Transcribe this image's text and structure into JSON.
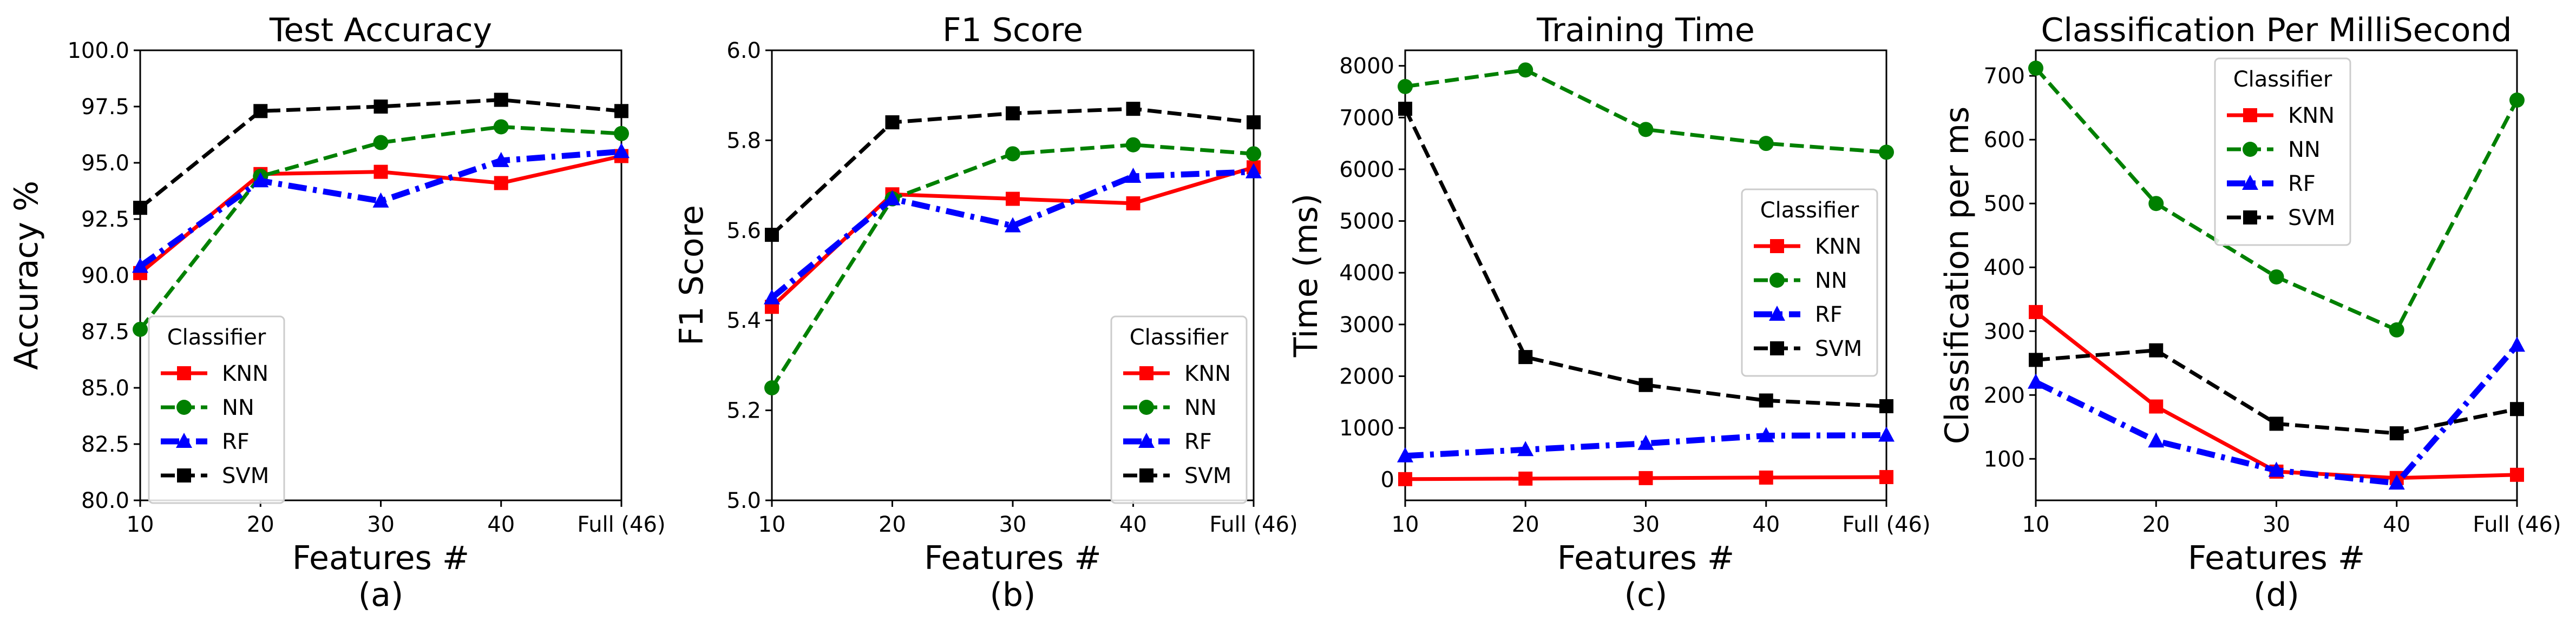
{
  "chart_data": [
    {
      "type": "line",
      "title": "Test Accuracy",
      "xlabel": "Features #",
      "ylabel": "Accuracy %",
      "caption": "(a)",
      "categories": [
        "10",
        "20",
        "30",
        "40",
        "Full (46)"
      ],
      "ylim": [
        80.0,
        100.0
      ],
      "yticks": [
        "80.0",
        "82.5",
        "85.0",
        "87.5",
        "90.0",
        "92.5",
        "95.0",
        "97.5",
        "100.0"
      ],
      "legend_title": "Classifier",
      "legend_position": "lower-left",
      "series": [
        {
          "name": "KNN",
          "values": [
            90.1,
            94.5,
            94.6,
            94.1,
            95.3
          ]
        },
        {
          "name": "NN",
          "values": [
            87.6,
            94.4,
            95.9,
            96.6,
            96.3
          ]
        },
        {
          "name": "RF",
          "values": [
            90.4,
            94.2,
            93.3,
            95.1,
            95.5
          ]
        },
        {
          "name": "SVM",
          "values": [
            93.0,
            97.3,
            97.5,
            97.8,
            97.3
          ]
        }
      ]
    },
    {
      "type": "line",
      "title": "F1 Score",
      "xlabel": "Features #",
      "ylabel": "F1 Score",
      "caption": "(b)",
      "categories": [
        "10",
        "20",
        "30",
        "40",
        "Full (46)"
      ],
      "ylim": [
        5.0,
        6.0
      ],
      "yticks": [
        "5.0",
        "5.2",
        "5.4",
        "5.6",
        "5.8",
        "6.0"
      ],
      "legend_title": "Classifier",
      "legend_position": "lower-right",
      "series": [
        {
          "name": "KNN",
          "values": [
            5.43,
            5.68,
            5.67,
            5.66,
            5.74
          ]
        },
        {
          "name": "NN",
          "values": [
            5.25,
            5.67,
            5.77,
            5.79,
            5.77
          ]
        },
        {
          "name": "RF",
          "values": [
            5.45,
            5.67,
            5.61,
            5.72,
            5.73
          ]
        },
        {
          "name": "SVM",
          "values": [
            5.59,
            5.84,
            5.86,
            5.87,
            5.84
          ]
        }
      ]
    },
    {
      "type": "line",
      "title": "Training Time",
      "xlabel": "Features #",
      "ylabel": "Time (ms)",
      "caption": "(c)",
      "categories": [
        "10",
        "20",
        "30",
        "40",
        "Full (46)"
      ],
      "ylim": [
        -400,
        8300
      ],
      "yticks": [
        "0",
        "1000",
        "2000",
        "3000",
        "4000",
        "5000",
        "6000",
        "7000",
        "8000"
      ],
      "legend_title": "Classifier",
      "legend_position": "center-right",
      "series": [
        {
          "name": "KNN",
          "values": [
            10,
            20,
            30,
            40,
            50
          ]
        },
        {
          "name": "NN",
          "values": [
            7600,
            7920,
            6770,
            6500,
            6330
          ]
        },
        {
          "name": "RF",
          "values": [
            460,
            580,
            700,
            850,
            860
          ]
        },
        {
          "name": "SVM",
          "values": [
            7170,
            2370,
            1830,
            1530,
            1420
          ]
        }
      ]
    },
    {
      "type": "line",
      "title": "Classification Per MilliSecond",
      "xlabel": "Features #",
      "ylabel": "Classification per ms",
      "caption": "(d)",
      "categories": [
        "10",
        "20",
        "30",
        "40",
        "Full (46)"
      ],
      "ylim": [
        35,
        740
      ],
      "yticks": [
        "100",
        "200",
        "300",
        "400",
        "500",
        "600",
        "700"
      ],
      "legend_title": "Classifier",
      "legend_position": "upper-center",
      "series": [
        {
          "name": "KNN",
          "values": [
            330,
            182,
            80,
            70,
            75
          ]
        },
        {
          "name": "NN",
          "values": [
            712,
            500,
            385,
            302,
            662
          ]
        },
        {
          "name": "RF",
          "values": [
            220,
            128,
            82,
            62,
            278
          ]
        },
        {
          "name": "SVM",
          "values": [
            255,
            270,
            155,
            140,
            178
          ]
        }
      ]
    }
  ],
  "series_style": {
    "KNN": {
      "color": "#ff0000",
      "dash": "solid",
      "marker": "square"
    },
    "NN": {
      "color": "#008000",
      "dash": "dashed",
      "marker": "circle"
    },
    "RF": {
      "color": "#0000ff",
      "dash": "dashdot",
      "marker": "triangle"
    },
    "SVM": {
      "color": "#000000",
      "dash": "dashed",
      "marker": "square"
    }
  }
}
